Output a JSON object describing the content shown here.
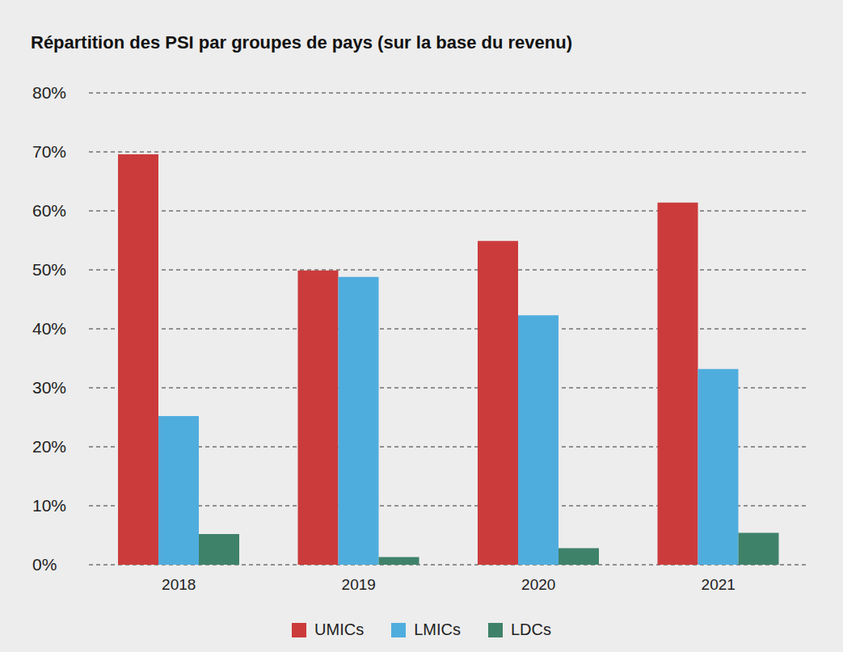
{
  "chart_data": {
    "type": "bar",
    "title": "Répartition des PSI par groupes de pays (sur la base du revenu)",
    "categories": [
      "2018",
      "2019",
      "2020",
      "2021"
    ],
    "series": [
      {
        "name": "UMICs",
        "color": "#cc3b3b",
        "values": [
          69.6,
          49.9,
          54.9,
          61.4
        ]
      },
      {
        "name": "LMICs",
        "color": "#4fadde",
        "values": [
          25.2,
          48.8,
          42.3,
          33.2
        ]
      },
      {
        "name": "LDCs",
        "color": "#3f826a",
        "values": [
          5.2,
          1.3,
          2.8,
          5.4
        ]
      }
    ],
    "ylim": [
      0,
      80
    ],
    "yticks": [
      {
        "value": 0,
        "label": "0%"
      },
      {
        "value": 10,
        "label": "10%"
      },
      {
        "value": 20,
        "label": "20%"
      },
      {
        "value": 30,
        "label": "30%"
      },
      {
        "value": 40,
        "label": "40%"
      },
      {
        "value": 50,
        "label": "50%"
      },
      {
        "value": 60,
        "label": "60%"
      },
      {
        "value": 70,
        "label": "70%"
      },
      {
        "value": 80,
        "label": "80%"
      }
    ],
    "grid": true,
    "legend": "bottom"
  }
}
